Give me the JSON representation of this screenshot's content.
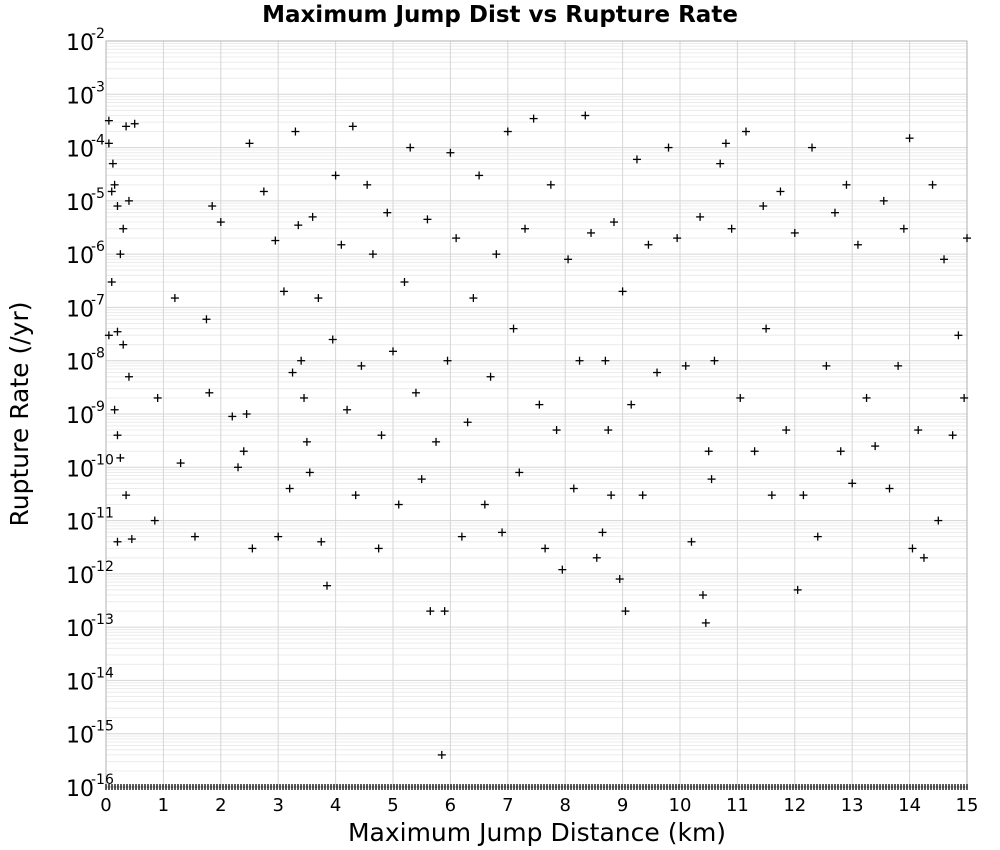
{
  "chart_data": {
    "type": "scatter",
    "title": "Maximum Jump Dist vs Rupture Rate",
    "xlabel": "Maximum Jump Distance (km)",
    "ylabel": "Rupture Rate (/yr)",
    "xlim": [
      0,
      15
    ],
    "ylim": [
      1e-16,
      0.01
    ],
    "yscale": "log",
    "x_ticks": [
      "0",
      "1",
      "2",
      "3",
      "4",
      "5",
      "6",
      "7",
      "8",
      "9",
      "10",
      "11",
      "12",
      "13",
      "14",
      "15"
    ],
    "y_ticks": [
      {
        "base": "10",
        "exp": "-2"
      },
      {
        "base": "10",
        "exp": "-3"
      },
      {
        "base": "10",
        "exp": "-4"
      },
      {
        "base": "10",
        "exp": "-5"
      },
      {
        "base": "10",
        "exp": "-6"
      },
      {
        "base": "10",
        "exp": "-7"
      },
      {
        "base": "10",
        "exp": "-8"
      },
      {
        "base": "10",
        "exp": "-9"
      },
      {
        "base": "10",
        "exp": "-10"
      },
      {
        "base": "10",
        "exp": "-11"
      },
      {
        "base": "10",
        "exp": "-12"
      },
      {
        "base": "10",
        "exp": "-13"
      },
      {
        "base": "10",
        "exp": "-14"
      },
      {
        "base": "10",
        "exp": "-15"
      },
      {
        "base": "10",
        "exp": "-16"
      }
    ],
    "marker": "+",
    "grid": true,
    "series": [
      {
        "points": [
          [
            0.05,
            0.00032
          ],
          [
            0.1,
            1.5e-05
          ],
          [
            0.15,
            2e-05
          ],
          [
            0.2,
            8e-06
          ],
          [
            0.3,
            3e-06
          ],
          [
            0.35,
            0.00025
          ],
          [
            0.5,
            0.00028
          ],
          [
            0.05,
            0.00012
          ],
          [
            0.12,
            5e-05
          ],
          [
            0.25,
            1e-06
          ],
          [
            0.4,
            1e-05
          ],
          [
            0.1,
            3e-07
          ],
          [
            0.05,
            3e-08
          ],
          [
            0.2,
            3.5e-08
          ],
          [
            0.3,
            2e-08
          ],
          [
            0.4,
            5e-09
          ],
          [
            0.15,
            1.2e-09
          ],
          [
            0.2,
            4e-10
          ],
          [
            0.25,
            1.5e-10
          ],
          [
            0.35,
            3e-11
          ],
          [
            0.2,
            4e-12
          ],
          [
            0.45,
            4.5e-12
          ],
          [
            0.9,
            2e-09
          ],
          [
            0.85,
            1e-11
          ],
          [
            1.2,
            1.5e-07
          ],
          [
            1.3,
            1.2e-10
          ],
          [
            1.55,
            5e-12
          ],
          [
            1.75,
            6e-08
          ],
          [
            1.8,
            2.5e-09
          ],
          [
            1.85,
            8e-06
          ],
          [
            2.0,
            4e-06
          ],
          [
            2.2,
            9e-10
          ],
          [
            2.3,
            1e-10
          ],
          [
            2.4,
            2e-10
          ],
          [
            2.45,
            1e-09
          ],
          [
            2.5,
            0.00012
          ],
          [
            2.55,
            3e-12
          ],
          [
            2.75,
            1.5e-05
          ],
          [
            2.95,
            1.8e-06
          ],
          [
            3.0,
            5e-12
          ],
          [
            3.1,
            2e-07
          ],
          [
            3.2,
            4e-11
          ],
          [
            3.25,
            6e-09
          ],
          [
            3.3,
            0.0002
          ],
          [
            3.35,
            3.5e-06
          ],
          [
            3.4,
            1e-08
          ],
          [
            3.45,
            2e-09
          ],
          [
            3.5,
            3e-10
          ],
          [
            3.55,
            8e-11
          ],
          [
            3.6,
            5e-06
          ],
          [
            3.7,
            1.5e-07
          ],
          [
            3.75,
            4e-12
          ],
          [
            3.85,
            6e-13
          ],
          [
            3.95,
            2.5e-08
          ],
          [
            4.0,
            3e-05
          ],
          [
            4.1,
            1.5e-06
          ],
          [
            4.2,
            1.2e-09
          ],
          [
            4.3,
            0.00025
          ],
          [
            4.35,
            3e-11
          ],
          [
            4.45,
            8e-09
          ],
          [
            4.55,
            2e-05
          ],
          [
            4.65,
            1e-06
          ],
          [
            4.75,
            3e-12
          ],
          [
            4.8,
            4e-10
          ],
          [
            4.9,
            6e-06
          ],
          [
            5.0,
            1.5e-08
          ],
          [
            5.1,
            2e-11
          ],
          [
            5.2,
            3e-07
          ],
          [
            5.3,
            0.0001
          ],
          [
            5.4,
            2.5e-09
          ],
          [
            5.5,
            6e-11
          ],
          [
            5.6,
            4.5e-06
          ],
          [
            5.65,
            2e-13
          ],
          [
            5.75,
            3e-10
          ],
          [
            5.85,
            4e-16
          ],
          [
            5.9,
            2e-13
          ],
          [
            5.95,
            1e-08
          ],
          [
            6.0,
            8e-05
          ],
          [
            6.1,
            2e-06
          ],
          [
            6.2,
            5e-12
          ],
          [
            6.3,
            7e-10
          ],
          [
            6.4,
            1.5e-07
          ],
          [
            6.5,
            3e-05
          ],
          [
            6.6,
            2e-11
          ],
          [
            6.7,
            5e-09
          ],
          [
            6.8,
            1e-06
          ],
          [
            6.9,
            6e-12
          ],
          [
            7.0,
            0.0002
          ],
          [
            7.1,
            4e-08
          ],
          [
            7.2,
            8e-11
          ],
          [
            7.3,
            3e-06
          ],
          [
            7.45,
            0.00035
          ],
          [
            7.55,
            1.5e-09
          ],
          [
            7.65,
            3e-12
          ],
          [
            7.75,
            2e-05
          ],
          [
            7.85,
            5e-10
          ],
          [
            7.95,
            1.2e-12
          ],
          [
            8.05,
            8e-07
          ],
          [
            8.15,
            4e-11
          ],
          [
            8.25,
            1e-08
          ],
          [
            8.35,
            0.0004
          ],
          [
            8.45,
            2.5e-06
          ],
          [
            8.55,
            2e-12
          ],
          [
            8.65,
            6e-12
          ],
          [
            8.7,
            1e-08
          ],
          [
            8.75,
            5e-10
          ],
          [
            8.8,
            3e-11
          ],
          [
            8.85,
            4e-06
          ],
          [
            8.95,
            8e-13
          ],
          [
            9.0,
            2e-07
          ],
          [
            9.05,
            2e-13
          ],
          [
            9.15,
            1.5e-09
          ],
          [
            9.25,
            6e-05
          ],
          [
            9.35,
            3e-11
          ],
          [
            9.45,
            1.5e-06
          ],
          [
            9.6,
            6e-09
          ],
          [
            9.8,
            0.0001
          ],
          [
            9.95,
            2e-06
          ],
          [
            10.1,
            8e-09
          ],
          [
            10.2,
            4e-12
          ],
          [
            10.35,
            5e-06
          ],
          [
            10.4,
            4e-13
          ],
          [
            10.45,
            1.2e-13
          ],
          [
            10.5,
            2e-10
          ],
          [
            10.55,
            6e-11
          ],
          [
            10.6,
            1e-08
          ],
          [
            10.7,
            5e-05
          ],
          [
            10.8,
            0.00012
          ],
          [
            10.9,
            3e-06
          ],
          [
            11.05,
            2e-09
          ],
          [
            11.15,
            0.0002
          ],
          [
            11.3,
            2e-10
          ],
          [
            11.45,
            8e-06
          ],
          [
            11.5,
            4e-08
          ],
          [
            11.6,
            3e-11
          ],
          [
            11.75,
            1.5e-05
          ],
          [
            11.85,
            5e-10
          ],
          [
            12.0,
            2.5e-06
          ],
          [
            12.05,
            5e-13
          ],
          [
            12.15,
            3e-11
          ],
          [
            12.3,
            0.0001
          ],
          [
            12.4,
            5e-12
          ],
          [
            12.55,
            8e-09
          ],
          [
            12.7,
            6e-06
          ],
          [
            12.8,
            2e-10
          ],
          [
            12.9,
            2e-05
          ],
          [
            13.0,
            5e-11
          ],
          [
            13.1,
            1.5e-06
          ],
          [
            13.25,
            2e-09
          ],
          [
            13.4,
            2.5e-10
          ],
          [
            13.55,
            1e-05
          ],
          [
            13.65,
            4e-11
          ],
          [
            13.8,
            8e-09
          ],
          [
            13.9,
            3e-06
          ],
          [
            14.0,
            0.00015
          ],
          [
            14.05,
            3e-12
          ],
          [
            14.15,
            5e-10
          ],
          [
            14.25,
            2e-12
          ],
          [
            14.4,
            2e-05
          ],
          [
            14.5,
            1e-11
          ],
          [
            14.6,
            8e-07
          ],
          [
            14.75,
            4e-10
          ],
          [
            14.85,
            3e-08
          ],
          [
            14.95,
            2e-09
          ],
          [
            15.0,
            2e-06
          ]
        ]
      }
    ]
  }
}
